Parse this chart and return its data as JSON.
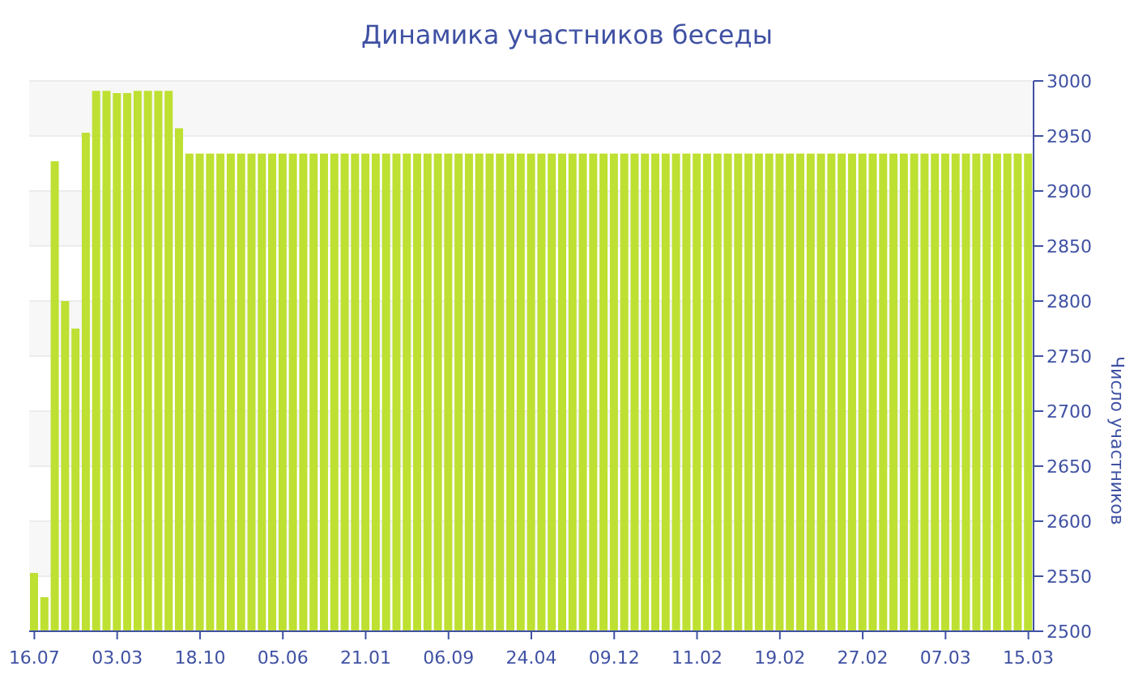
{
  "chart_data": {
    "type": "bar",
    "title": "Динамика участников беседы",
    "ylabel": "Число участников",
    "categories": [
      "16.07",
      null,
      null,
      null,
      null,
      null,
      null,
      null,
      "03.03",
      null,
      null,
      null,
      null,
      null,
      null,
      null,
      "18.10",
      null,
      null,
      null,
      null,
      null,
      null,
      null,
      "05.06",
      null,
      null,
      null,
      null,
      null,
      null,
      null,
      "21.01",
      null,
      null,
      null,
      null,
      null,
      null,
      null,
      "06.09",
      null,
      null,
      null,
      null,
      null,
      null,
      null,
      "24.04",
      null,
      null,
      null,
      null,
      null,
      null,
      null,
      "09.12",
      null,
      null,
      null,
      null,
      null,
      null,
      null,
      "11.02",
      null,
      null,
      null,
      null,
      null,
      null,
      null,
      "19.02",
      null,
      null,
      null,
      null,
      null,
      null,
      null,
      "27.02",
      null,
      null,
      null,
      null,
      null,
      null,
      null,
      "07.03",
      null,
      null,
      null,
      null,
      null,
      null,
      null,
      "15.03"
    ],
    "values": [
      2553,
      2531,
      2927,
      2800,
      2775,
      2953,
      2991,
      2991,
      2989,
      2989,
      2991,
      2991,
      2991,
      2991,
      2957,
      2934,
      2934,
      2934,
      2934,
      2934,
      2934,
      2934,
      2934,
      2934,
      2934,
      2934,
      2934,
      2934,
      2934,
      2934,
      2934,
      2934,
      2934,
      2934,
      2934,
      2934,
      2934,
      2934,
      2934,
      2934,
      2934,
      2934,
      2934,
      2934,
      2934,
      2934,
      2934,
      2934,
      2934,
      2934,
      2934,
      2934,
      2934,
      2934,
      2934,
      2934,
      2934,
      2934,
      2934,
      2934,
      2934,
      2934,
      2934,
      2934,
      2934,
      2934,
      2934,
      2934,
      2934,
      2934,
      2934,
      2934,
      2934,
      2934,
      2934,
      2934,
      2934,
      2934,
      2934,
      2934,
      2934,
      2934,
      2934,
      2934,
      2934,
      2934,
      2934,
      2934,
      2934,
      2934,
      2934,
      2934,
      2934,
      2934,
      2934,
      2934,
      2934
    ],
    "color": "#bde032",
    "ylim": [
      2500,
      3000
    ],
    "yticks": [
      2500,
      2550,
      2600,
      2650,
      2700,
      2750,
      2800,
      2850,
      2900,
      2950,
      3000
    ],
    "grid": "y"
  }
}
